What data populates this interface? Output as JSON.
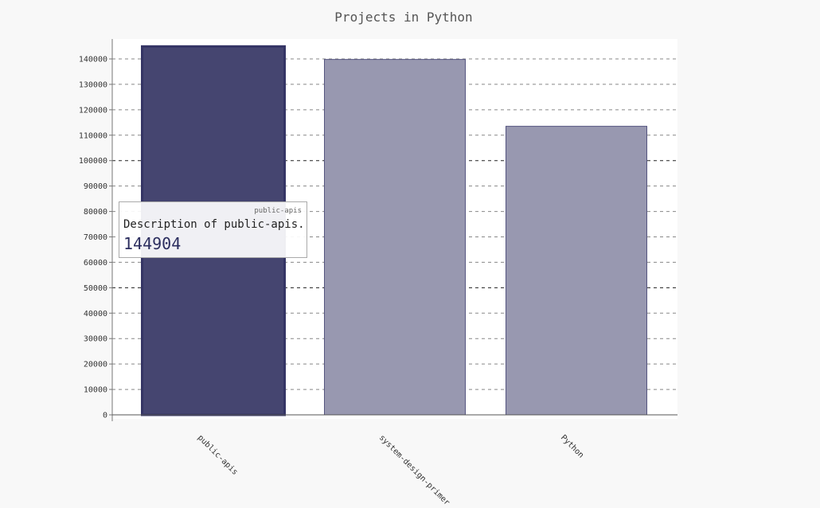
{
  "chart_data": {
    "type": "bar",
    "title": "Projects in Python",
    "categories": [
      "public-apis",
      "system-design-primer",
      "Python"
    ],
    "values": [
      144904,
      139800,
      113500
    ],
    "ylim": [
      0,
      140000
    ],
    "yticks": [
      0,
      10000,
      20000,
      30000,
      40000,
      50000,
      60000,
      70000,
      80000,
      90000,
      100000,
      110000,
      120000,
      130000,
      140000
    ],
    "major_yticks": [
      50000,
      100000
    ],
    "xlabel": "",
    "ylabel": "",
    "grid": true,
    "colors": {
      "bar": "#9898b0",
      "bar_highlight": "#454570",
      "bar_stroke": "#555580",
      "bar_highlight_stroke": "#353565",
      "grid": "#888888",
      "plot_background": "#ffffff"
    }
  },
  "tooltip": {
    "series": "public-apis",
    "description": "Description of public-apis.",
    "value": "144904"
  }
}
